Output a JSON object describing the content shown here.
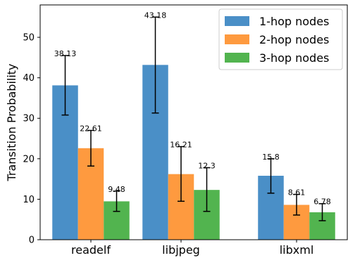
{
  "chart_data": {
    "type": "bar",
    "title": "",
    "xlabel": "",
    "ylabel": "Transition Probability",
    "ylim": [
      0,
      58
    ],
    "yticks": [
      0,
      10,
      20,
      30,
      40,
      50
    ],
    "categories": [
      "readelf",
      "libjpeg",
      "libxml"
    ],
    "series": [
      {
        "name": "1-hop nodes",
        "color": "#4a8fc7",
        "values": [
          38.13,
          43.18,
          15.8
        ],
        "labels": [
          "38.13",
          "43.18",
          "15.8"
        ],
        "err_low": [
          30.8,
          31.3,
          11.5
        ],
        "err_high": [
          45.5,
          55.0,
          20.0
        ]
      },
      {
        "name": "2-hop nodes",
        "color": "#fe9a3f",
        "values": [
          22.61,
          16.21,
          8.61
        ],
        "labels": [
          "22.61",
          "16.21",
          "8.61"
        ],
        "err_low": [
          18.2,
          9.5,
          6.1
        ],
        "err_high": [
          27.0,
          23.0,
          11.2
        ]
      },
      {
        "name": "3-hop nodes",
        "color": "#52b44f",
        "values": [
          9.48,
          12.3,
          6.78
        ],
        "labels": [
          "9.48",
          "12.3",
          "6.78"
        ],
        "err_low": [
          7.0,
          7.0,
          4.7
        ],
        "err_high": [
          12.0,
          17.8,
          8.9
        ]
      }
    ],
    "legend_position": "top-right",
    "grid": false
  }
}
